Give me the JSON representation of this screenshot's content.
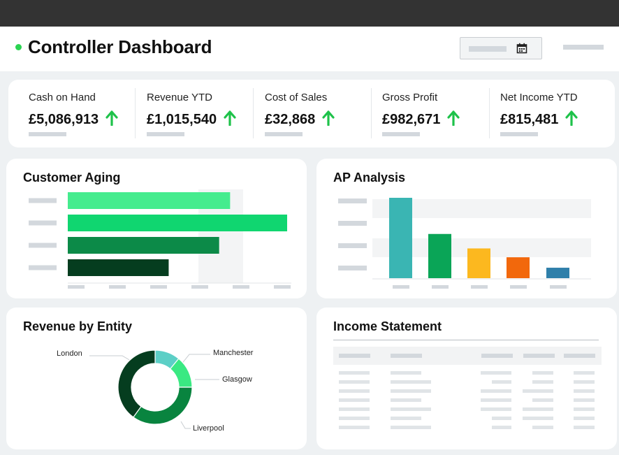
{
  "header": {
    "title": "Controller Dashboard",
    "status_color": "#2bd452",
    "date_icon": "calendar-icon"
  },
  "kpis": [
    {
      "label": "Cash on Hand",
      "value": "£5,086,913",
      "trend": "up"
    },
    {
      "label": "Revenue YTD",
      "value": "£1,015,540",
      "trend": "up"
    },
    {
      "label": "Cost of Sales",
      "value": "£32,868",
      "trend": "up"
    },
    {
      "label": "Gross Profit",
      "value": "£982,671",
      "trend": "up"
    },
    {
      "label": "Net Income YTD",
      "value": "£815,481",
      "trend": "up"
    }
  ],
  "colors": {
    "up_arrow": "#1ec24a",
    "aging": [
      "#45ec8e",
      "#10d670",
      "#0c8a48",
      "#053d1f"
    ],
    "ap": [
      "#3ab5b3",
      "#0aa557",
      "#fcb81f",
      "#f2680c",
      "#2f7faa"
    ],
    "entity": [
      "#5ccfc6",
      "#3ae982",
      "#09843f",
      "#053d1f"
    ]
  },
  "panels": {
    "aging_title": "Customer Aging",
    "ap_title": "AP Analysis",
    "entity_title": "Revenue by Entity",
    "income_title": "Income Statement"
  },
  "chart_data": [
    {
      "type": "bar",
      "orientation": "horizontal",
      "title": "Customer Aging",
      "categories": [
        "",
        "",
        "",
        ""
      ],
      "values": [
        74,
        100,
        69,
        46
      ],
      "xlim": [
        0,
        100
      ]
    },
    {
      "type": "bar",
      "title": "AP Analysis",
      "categories": [
        "",
        "",
        "",
        "",
        ""
      ],
      "values": [
        100,
        55,
        37,
        26,
        13
      ],
      "ylim": [
        0,
        100
      ]
    },
    {
      "type": "pie",
      "donut": true,
      "title": "Revenue by Entity",
      "labels": [
        "Manchester",
        "Glasgow",
        "Liverpool",
        "London"
      ],
      "values": [
        11,
        14,
        35,
        40
      ]
    }
  ]
}
